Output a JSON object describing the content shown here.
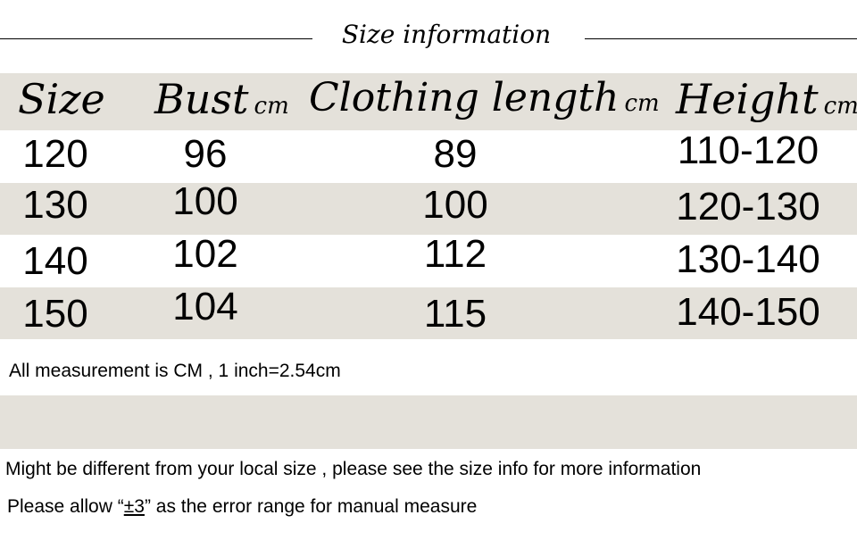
{
  "title": "Size information",
  "headers": [
    {
      "label": "Size",
      "unit": ""
    },
    {
      "label": "Bust",
      "unit": "cm"
    },
    {
      "label": "Clothing length",
      "unit": "cm"
    },
    {
      "label": "Height",
      "unit": "cm"
    }
  ],
  "rows": [
    [
      "120",
      "96",
      "89",
      "110-120"
    ],
    [
      "130",
      "100",
      "100",
      "120-130"
    ],
    [
      "140",
      "102",
      "112",
      "130-140"
    ],
    [
      "150",
      "104",
      "115",
      "140-150"
    ]
  ],
  "notes": {
    "measurement": "All measurement is CM , 1 inch=2.54cm",
    "local_size": "Might be different from your local size , please see the size info for more information",
    "error_prefix": "Please allow “",
    "error_value": "±3",
    "error_suffix": "” as the error range for manual measure"
  },
  "colors": {
    "band": "#e4e1da",
    "text": "#000000"
  }
}
